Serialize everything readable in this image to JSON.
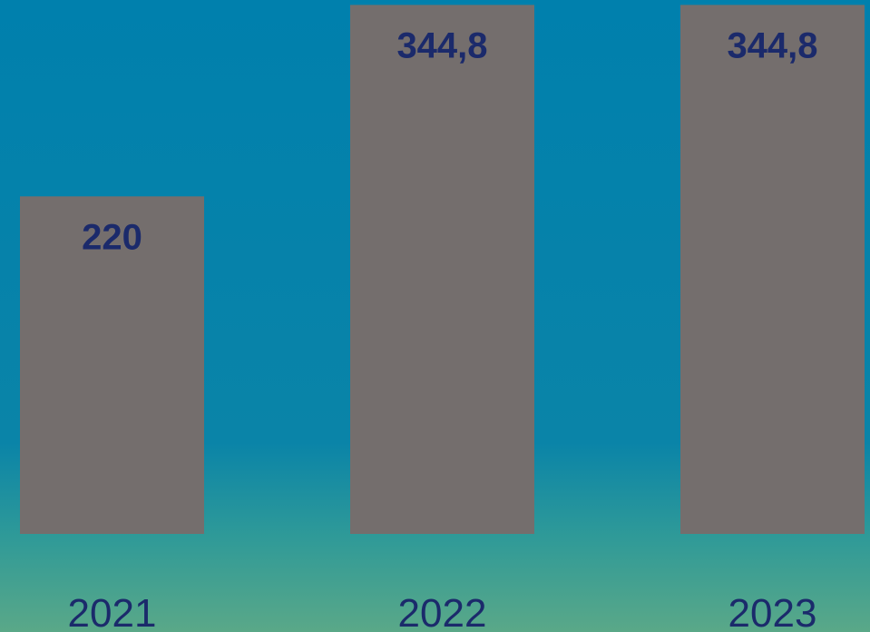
{
  "chart_data": {
    "type": "bar",
    "categories": [
      "2021",
      "2022",
      "2023"
    ],
    "values": [
      220,
      344.8,
      344.8
    ],
    "value_labels": [
      "220",
      "344,8",
      "344,8"
    ],
    "color": "#746e6d",
    "ylim": [
      0,
      348
    ]
  }
}
